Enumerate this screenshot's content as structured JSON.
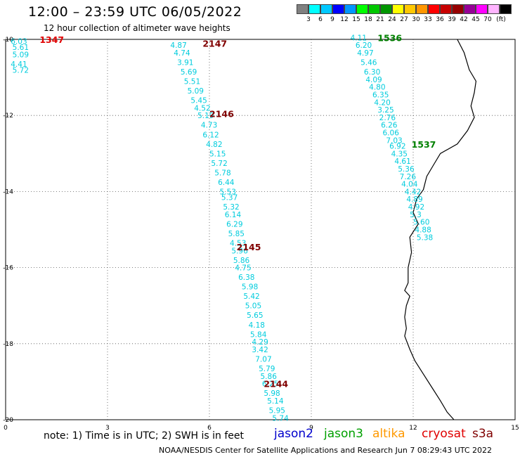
{
  "header": {
    "title": "12:00 – 23:59 UTC 06/05/2022",
    "subtitle": "12 hour collection of altimeter wave heights"
  },
  "colorbar": {
    "colors": [
      "#808080",
      "#00ffff",
      "#00c8ff",
      "#0000ff",
      "#0096ff",
      "#00ff00",
      "#00c800",
      "#009600",
      "#ffff00",
      "#ffc800",
      "#ff9600",
      "#ff0000",
      "#c80000",
      "#960000",
      "#960096",
      "#ff00ff",
      "#ffb4ff",
      "#000000"
    ],
    "labels": [
      "3",
      "6",
      "9",
      "12",
      "15",
      "18",
      "21",
      "24",
      "27",
      "30",
      "33",
      "36",
      "39",
      "42",
      "45",
      "70",
      "(ft)"
    ]
  },
  "axes": {
    "x_ticks": [
      "0",
      "3",
      "6",
      "9",
      "12",
      "15"
    ],
    "y_ticks": [
      "-10",
      "-12",
      "-14",
      "-16",
      "-18",
      "-20"
    ]
  },
  "passes": [
    {
      "label": "1347",
      "color": "#e00000",
      "lon": 1.0,
      "lat": -10.0
    },
    {
      "label": "2147",
      "color": "#800000",
      "lon": 5.8,
      "lat": -10.1
    },
    {
      "label": "2146",
      "color": "#800000",
      "lon": 6.0,
      "lat": -11.95
    },
    {
      "label": "2145",
      "color": "#800000",
      "lon": 6.8,
      "lat": -15.45
    },
    {
      "label": "2144",
      "color": "#800000",
      "lon": 7.6,
      "lat": -19.05
    },
    {
      "label": "1536",
      "color": "#008000",
      "lon": 10.95,
      "lat": -9.95
    },
    {
      "label": "1537",
      "color": "#008000",
      "lon": 11.95,
      "lat": -12.75
    }
  ],
  "swh_points": [
    {
      "lon": 0.15,
      "lat": -10.05,
      "text": "6.03"
    },
    {
      "lon": 0.2,
      "lat": -10.2,
      "text": "5.61"
    },
    {
      "lon": 0.2,
      "lat": -10.4,
      "text": "5.09"
    },
    {
      "lon": 0.15,
      "lat": -10.65,
      "text": "4.41"
    },
    {
      "lon": 0.2,
      "lat": -10.8,
      "text": "5.72"
    },
    {
      "lon": 4.85,
      "lat": -10.15,
      "text": "4.87"
    },
    {
      "lon": 4.95,
      "lat": -10.35,
      "text": "4.74"
    },
    {
      "lon": 5.05,
      "lat": -10.6,
      "text": "3.91"
    },
    {
      "lon": 5.15,
      "lat": -10.85,
      "text": "5.69"
    },
    {
      "lon": 5.25,
      "lat": -11.1,
      "text": "5.51"
    },
    {
      "lon": 5.35,
      "lat": -11.35,
      "text": "5.09"
    },
    {
      "lon": 5.45,
      "lat": -11.6,
      "text": "5.45"
    },
    {
      "lon": 5.55,
      "lat": -11.8,
      "text": "4.52"
    },
    {
      "lon": 5.65,
      "lat": -12.0,
      "text": "5.19"
    },
    {
      "lon": 5.75,
      "lat": -12.25,
      "text": "4.73"
    },
    {
      "lon": 5.8,
      "lat": -12.5,
      "text": "6.12"
    },
    {
      "lon": 5.9,
      "lat": -12.75,
      "text": "4.82"
    },
    {
      "lon": 6.0,
      "lat": -13.0,
      "text": "5.15"
    },
    {
      "lon": 6.05,
      "lat": -13.25,
      "text": "5.72"
    },
    {
      "lon": 6.15,
      "lat": -13.5,
      "text": "5.78"
    },
    {
      "lon": 6.25,
      "lat": -13.75,
      "text": "6.44"
    },
    {
      "lon": 6.3,
      "lat": -14.0,
      "text": "5.53"
    },
    {
      "lon": 6.35,
      "lat": -14.15,
      "text": "5.37"
    },
    {
      "lon": 6.4,
      "lat": -14.4,
      "text": "5.32"
    },
    {
      "lon": 6.45,
      "lat": -14.6,
      "text": "6.14"
    },
    {
      "lon": 6.5,
      "lat": -14.85,
      "text": "6.29"
    },
    {
      "lon": 6.55,
      "lat": -15.1,
      "text": "5.85"
    },
    {
      "lon": 6.6,
      "lat": -15.35,
      "text": "4.53"
    },
    {
      "lon": 6.65,
      "lat": -15.55,
      "text": "5.96"
    },
    {
      "lon": 6.7,
      "lat": -15.8,
      "text": "5.86"
    },
    {
      "lon": 6.75,
      "lat": -16.0,
      "text": "4.75"
    },
    {
      "lon": 6.85,
      "lat": -16.25,
      "text": "6.38"
    },
    {
      "lon": 6.95,
      "lat": -16.5,
      "text": "5.98"
    },
    {
      "lon": 7.0,
      "lat": -16.75,
      "text": "5.42"
    },
    {
      "lon": 7.05,
      "lat": -17.0,
      "text": "5.05"
    },
    {
      "lon": 7.1,
      "lat": -17.25,
      "text": "5.65"
    },
    {
      "lon": 7.15,
      "lat": -17.5,
      "text": "4.18"
    },
    {
      "lon": 7.2,
      "lat": -17.75,
      "text": "5.84"
    },
    {
      "lon": 7.25,
      "lat": -17.95,
      "text": "4.29"
    },
    {
      "lon": 7.25,
      "lat": -18.15,
      "text": "3.42"
    },
    {
      "lon": 7.35,
      "lat": -18.4,
      "text": "7.07"
    },
    {
      "lon": 7.45,
      "lat": -18.65,
      "text": "5.79"
    },
    {
      "lon": 7.5,
      "lat": -18.85,
      "text": "5.86"
    },
    {
      "lon": 7.55,
      "lat": -19.05,
      "text": "6.25"
    },
    {
      "lon": 7.6,
      "lat": -19.3,
      "text": "5.98"
    },
    {
      "lon": 7.7,
      "lat": -19.5,
      "text": "5.14"
    },
    {
      "lon": 7.75,
      "lat": -19.75,
      "text": "5.95"
    },
    {
      "lon": 7.85,
      "lat": -19.95,
      "text": "5.74"
    },
    {
      "lon": 10.15,
      "lat": -9.95,
      "text": "4.11"
    },
    {
      "lon": 10.3,
      "lat": -10.15,
      "text": "6.20"
    },
    {
      "lon": 10.35,
      "lat": -10.35,
      "text": "4.97"
    },
    {
      "lon": 10.45,
      "lat": -10.6,
      "text": "5.46"
    },
    {
      "lon": 10.55,
      "lat": -10.85,
      "text": "6.30"
    },
    {
      "lon": 10.6,
      "lat": -11.05,
      "text": "4.09"
    },
    {
      "lon": 10.7,
      "lat": -11.25,
      "text": "4.80"
    },
    {
      "lon": 10.8,
      "lat": -11.45,
      "text": "6.35"
    },
    {
      "lon": 10.85,
      "lat": -11.65,
      "text": "4.20"
    },
    {
      "lon": 10.95,
      "lat": -11.85,
      "text": "3.25"
    },
    {
      "lon": 11.0,
      "lat": -12.05,
      "text": "2.76"
    },
    {
      "lon": 11.05,
      "lat": -12.25,
      "text": "6.26"
    },
    {
      "lon": 11.1,
      "lat": -12.45,
      "text": "6.06"
    },
    {
      "lon": 11.2,
      "lat": -12.65,
      "text": "7.03"
    },
    {
      "lon": 11.3,
      "lat": -12.8,
      "text": "6.92"
    },
    {
      "lon": 11.35,
      "lat": -13.0,
      "text": "4.35"
    },
    {
      "lon": 11.45,
      "lat": -13.2,
      "text": "4.61"
    },
    {
      "lon": 11.55,
      "lat": -13.4,
      "text": "5.36"
    },
    {
      "lon": 11.6,
      "lat": -13.6,
      "text": "7.26"
    },
    {
      "lon": 11.65,
      "lat": -13.8,
      "text": "4.04"
    },
    {
      "lon": 11.75,
      "lat": -14.0,
      "text": "4.42"
    },
    {
      "lon": 11.8,
      "lat": -14.2,
      "text": "4.89"
    },
    {
      "lon": 11.85,
      "lat": -14.4,
      "text": "4.92"
    },
    {
      "lon": 11.9,
      "lat": -14.6,
      "text": "5.3"
    },
    {
      "lon": 12.0,
      "lat": -14.8,
      "text": "5.60"
    },
    {
      "lon": 12.05,
      "lat": -15.0,
      "text": "4.88"
    },
    {
      "lon": 12.1,
      "lat": -15.2,
      "text": "5.38"
    }
  ],
  "coastline": [
    [
      13.3,
      -10.0
    ],
    [
      13.5,
      -10.35
    ],
    [
      13.65,
      -10.8
    ],
    [
      13.85,
      -11.1
    ],
    [
      13.8,
      -11.4
    ],
    [
      13.7,
      -11.75
    ],
    [
      13.8,
      -12.05
    ],
    [
      13.6,
      -12.4
    ],
    [
      13.3,
      -12.75
    ],
    [
      12.8,
      -13.0
    ],
    [
      12.6,
      -13.3
    ],
    [
      12.4,
      -13.6
    ],
    [
      12.3,
      -13.95
    ],
    [
      12.1,
      -14.2
    ],
    [
      12.0,
      -14.55
    ],
    [
      12.15,
      -14.85
    ],
    [
      11.9,
      -15.2
    ],
    [
      11.95,
      -15.6
    ],
    [
      11.85,
      -16.0
    ],
    [
      11.85,
      -16.4
    ],
    [
      11.75,
      -16.6
    ],
    [
      11.9,
      -16.75
    ],
    [
      11.8,
      -17.0
    ],
    [
      11.75,
      -17.3
    ],
    [
      11.8,
      -17.6
    ],
    [
      11.75,
      -17.8
    ],
    [
      11.9,
      -18.15
    ],
    [
      12.05,
      -18.45
    ],
    [
      12.3,
      -18.8
    ],
    [
      12.55,
      -19.15
    ],
    [
      12.8,
      -19.5
    ],
    [
      13.0,
      -19.8
    ],
    [
      13.2,
      -20.0
    ]
  ],
  "notes": {
    "note_text": "note:  1) Time is in UTC; 2) SWH is in feet",
    "footer": "NOAA/NESDIS Center for Satellite Applications and Research    Jun  7 08:29:43 UTC 2022"
  },
  "satellites": [
    {
      "name": "jason2",
      "color": "#0000cc"
    },
    {
      "name": "jason3",
      "color": "#00a000"
    },
    {
      "name": "altika",
      "color": "#ff9900"
    },
    {
      "name": "cryosat",
      "color": "#e00000"
    },
    {
      "name": "s3a",
      "color": "#800000"
    }
  ],
  "point_color": "#00ccdd"
}
